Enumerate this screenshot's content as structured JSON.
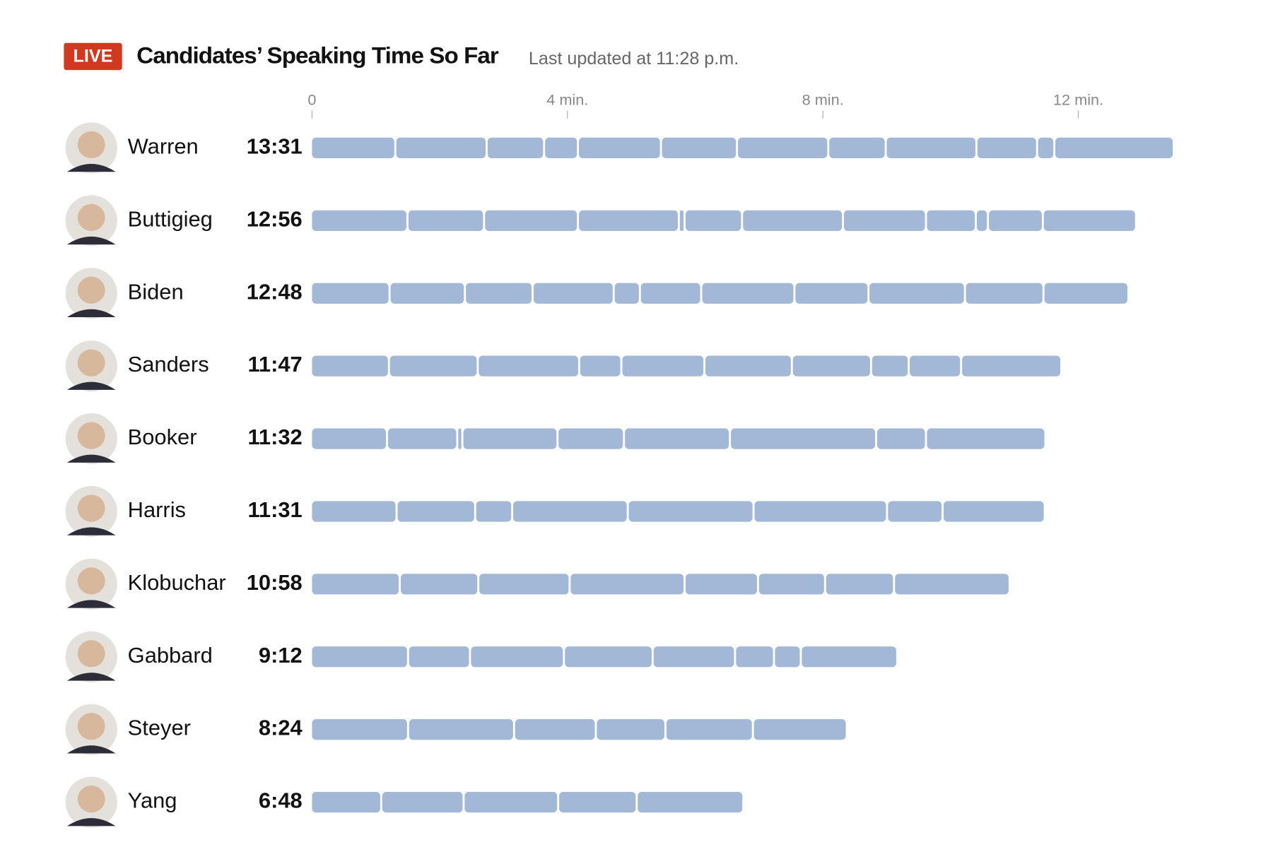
{
  "chart_data": {
    "type": "segmented-bar",
    "badge": "LIVE",
    "title": "Candidates’ Speaking Time So Far",
    "subtitle": "Last updated at 11:28 p.m.",
    "color": "#a3b8d6",
    "xlim": [
      0,
      14
    ],
    "xticks": [
      0,
      {
        "value": 4,
        "label": "4 min."
      },
      {
        "value": 8,
        "label": "8 min."
      },
      {
        "value": 12,
        "label": "12 min."
      }
    ],
    "rows": [
      {
        "name": "Warren",
        "total": "13:31",
        "segments": [
          1.32,
          1.43,
          0.9,
          0.53,
          1.3,
          1.19,
          1.43,
          0.9,
          1.42,
          0.95,
          0.27,
          1.87
        ]
      },
      {
        "name": "Buttigieg",
        "total": "12:56",
        "segments": [
          1.51,
          1.2,
          1.47,
          1.58,
          0.09,
          0.9,
          1.58,
          1.3,
          0.78,
          0.19,
          0.86,
          1.46
        ]
      },
      {
        "name": "Biden",
        "total": "12:48",
        "segments": [
          1.23,
          1.18,
          1.06,
          1.27,
          0.41,
          0.96,
          1.46,
          1.16,
          1.51,
          1.23,
          1.33
        ]
      },
      {
        "name": "Sanders",
        "total": "11:47",
        "segments": [
          1.22,
          1.39,
          1.59,
          0.66,
          1.3,
          1.37,
          1.24,
          0.59,
          0.82,
          1.57
        ]
      },
      {
        "name": "Booker",
        "total": "11:32",
        "segments": [
          1.19,
          1.1,
          0.08,
          1.49,
          1.04,
          1.66,
          2.29,
          0.78,
          1.87
        ]
      },
      {
        "name": "Harris",
        "total": "11:31",
        "segments": [
          1.34,
          1.23,
          0.58,
          1.81,
          1.97,
          2.09,
          0.87,
          1.6
        ]
      },
      {
        "name": "Klobuchar",
        "total": "10:58",
        "segments": [
          1.39,
          1.23,
          1.43,
          1.8,
          1.15,
          1.05,
          1.08,
          1.81
        ]
      },
      {
        "name": "Gabbard",
        "total": "9:12",
        "segments": [
          1.52,
          0.97,
          1.47,
          1.39,
          1.29,
          0.61,
          0.42,
          1.51
        ]
      },
      {
        "name": "Steyer",
        "total": "8:24",
        "segments": [
          1.52,
          1.66,
          1.28,
          1.09,
          1.37,
          1.47
        ]
      },
      {
        "name": "Yang",
        "total": "6:48",
        "segments": [
          1.1,
          1.29,
          1.48,
          1.23,
          1.67
        ]
      }
    ]
  }
}
